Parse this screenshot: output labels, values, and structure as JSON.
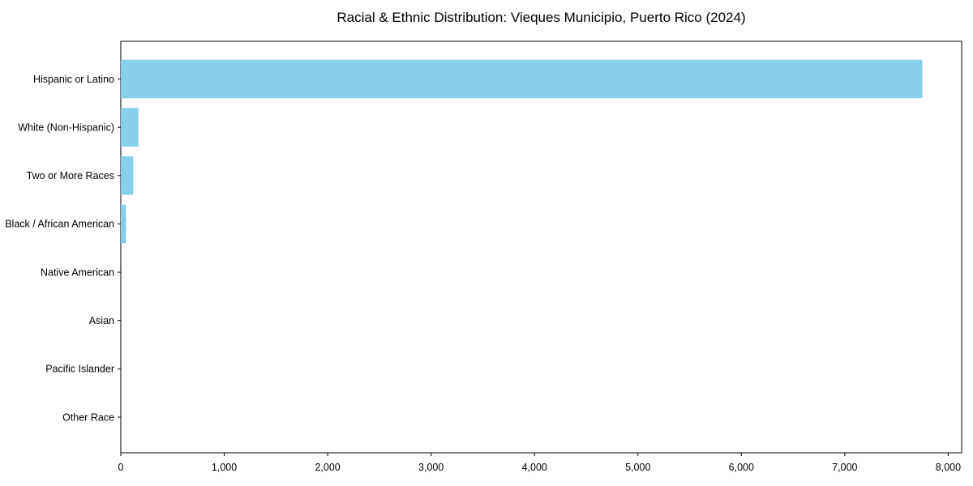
{
  "chart_data": {
    "type": "bar",
    "orientation": "horizontal",
    "title": "Racial & Ethnic Distribution: Vieques Municipio, Puerto Rico (2024)",
    "categories": [
      "Hispanic or Latino",
      "White (Non-Hispanic)",
      "Two or More Races",
      "Black / African American",
      "Native American",
      "Asian",
      "Pacific Islander",
      "Other Race"
    ],
    "values": [
      7750,
      170,
      120,
      50,
      0,
      0,
      0,
      0
    ],
    "xlabel": "",
    "ylabel": "",
    "xlim": [
      0,
      8130
    ],
    "xticks": [
      0,
      1000,
      2000,
      3000,
      4000,
      5000,
      6000,
      7000,
      8000
    ],
    "xtick_labels": [
      "0",
      "1,000",
      "2,000",
      "3,000",
      "4,000",
      "5,000",
      "6,000",
      "7,000",
      "8,000"
    ],
    "bar_color": "#87CEEB",
    "axis_color": "#000000",
    "text_color": "#000000",
    "background_color": "#ffffff",
    "grid": false,
    "legend": null
  }
}
